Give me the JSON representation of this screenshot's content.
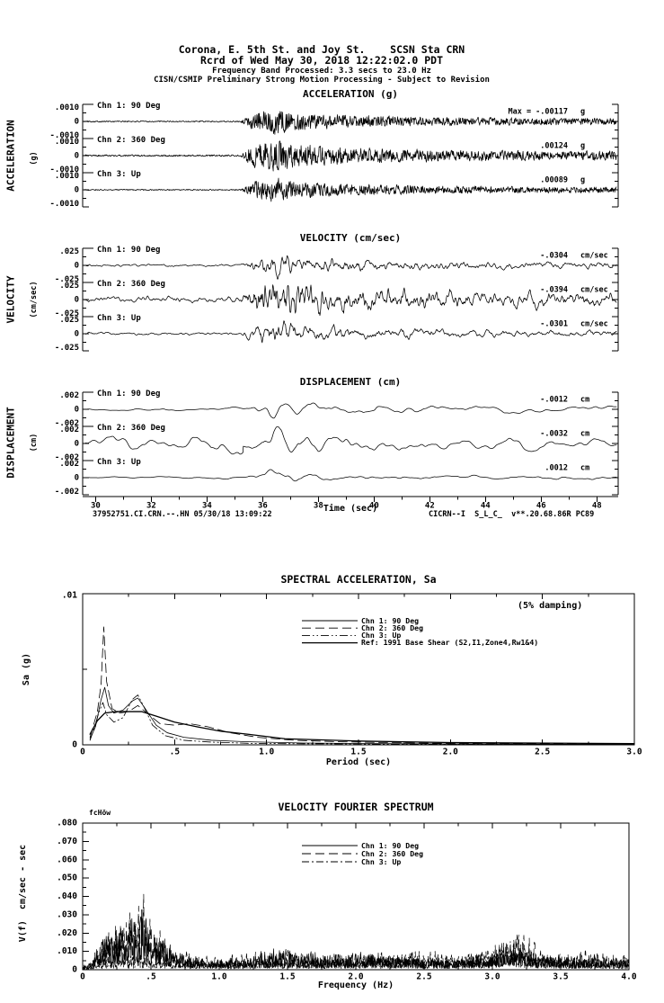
{
  "colors": {
    "background": "#ffffff",
    "ink": "#000000"
  },
  "header": {
    "line1": "Corona, E. 5th St. and Joy St.    SCSN Sta CRN",
    "line2": "Rcrd of Wed May 30, 2018 12:22:02.0 PDT",
    "line3": "Frequency Band Processed: 3.3 secs to 23.0 Hz",
    "line4": "CISN/CSMIP Preliminary Strong Motion Processing - Subject to Revision"
  },
  "time_series": {
    "sections": [
      {
        "id": "acceleration",
        "title": "ACCELERATION (g)",
        "side": "ACCELERATION",
        "side_unit": "(g)",
        "yticks": [
          ".0010",
          "0",
          "-.0010"
        ],
        "channels": [
          {
            "label": "Chn 1: 90 Deg",
            "max_text": "Max =  -.00117",
            "unit": "g"
          },
          {
            "label": "Chn 2: 360 Deg",
            "max_text": ".00124",
            "unit": "g"
          },
          {
            "label": "Chn 3: Up",
            "max_text": ".00089",
            "unit": "g"
          }
        ]
      },
      {
        "id": "velocity",
        "title": "VELOCITY (cm/sec)",
        "side": "VELOCITY",
        "side_unit": "(cm/sec)",
        "yticks": [
          ".025",
          "0",
          "-.025"
        ],
        "channels": [
          {
            "label": "Chn 1: 90 Deg",
            "max_text": "-.0304",
            "unit": "cm/sec"
          },
          {
            "label": "Chn 2: 360 Deg",
            "max_text": "-.0394",
            "unit": "cm/sec"
          },
          {
            "label": "Chn 3: Up",
            "max_text": "-.0301",
            "unit": "cm/sec"
          }
        ]
      },
      {
        "id": "displacement",
        "title": "DISPLACEMENT (cm)",
        "side": "DISPLACEMENT",
        "side_unit": "(cm)",
        "yticks": [
          ".002",
          "0",
          "-.002"
        ],
        "channels": [
          {
            "label": "Chn 1: 90 Deg",
            "max_text": "-.0012",
            "unit": "cm"
          },
          {
            "label": "Chn 2: 360 Deg",
            "max_text": "-.0032",
            "unit": "cm"
          },
          {
            "label": "Chn 3: Up",
            "max_text": ".0012",
            "unit": "cm"
          }
        ]
      }
    ],
    "time_axis": {
      "label": "Time (sec)",
      "tick_labels": [
        "30",
        "32",
        "34",
        "36",
        "38",
        "40",
        "42",
        "44",
        "46",
        "48"
      ],
      "tick_values": [
        30,
        32,
        34,
        36,
        38,
        40,
        42,
        44,
        46,
        48
      ],
      "t_start": 29.6,
      "t_end": 48.7
    },
    "footer_left": "37952751.CI.CRN.--.HN 05/30/18 13:09:22",
    "footer_right": "CICRN--I  S_L_C_  v**.20.68.86R PC89"
  },
  "sa_chart": {
    "title": "SPECTRAL ACCELERATION, Sa",
    "damping_note": "(5% damping)",
    "xlabel": "Period (sec)",
    "ylabel": "Sa (g)",
    "xtick_labels": [
      "0",
      ".5",
      "1.0",
      "1.5",
      "2.0",
      "2.5",
      "3.0"
    ],
    "xtick_values": [
      0,
      0.5,
      1,
      1.5,
      2,
      2.5,
      3
    ],
    "ytick_labels": [
      ".01",
      "0"
    ],
    "legend": [
      {
        "label": "Chn 1: 90 Deg",
        "style": "solid"
      },
      {
        "label": "Chn 2: 360 Deg",
        "style": "dash"
      },
      {
        "label": "Chn 3: Up",
        "style": "dashdotdot"
      },
      {
        "label": "Ref: 1991 Base Shear (S2,I1,Zone4,Rw1&4)",
        "style": "solid-thick"
      }
    ]
  },
  "fourier_chart": {
    "title": "VELOCITY FOURIER SPECTRUM",
    "corner_marker": "fcHöw",
    "xlabel": "Frequency (Hz)",
    "ylabel": "V(f)  cm/sec - sec",
    "xtick_labels": [
      "0",
      ".5",
      "1.0",
      "1.5",
      "2.0",
      "2.5",
      "3.0",
      "3.5",
      "4.0"
    ],
    "xtick_values": [
      0,
      0.5,
      1,
      1.5,
      2,
      2.5,
      3,
      3.5,
      4
    ],
    "ytick_labels": [
      ".080",
      ".070",
      ".060",
      ".050",
      ".040",
      ".030",
      ".020",
      ".010",
      "0"
    ],
    "ytick_values": [
      0.08,
      0.07,
      0.06,
      0.05,
      0.04,
      0.03,
      0.02,
      0.01,
      0
    ],
    "legend": [
      {
        "label": "Chn 1: 90 Deg",
        "style": "solid"
      },
      {
        "label": "Chn 2: 360 Deg",
        "style": "dash"
      },
      {
        "label": "Chn 3: Up",
        "style": "dashdot"
      }
    ]
  },
  "chart_data": [
    {
      "id": "acceleration",
      "type": "line",
      "title": "ACCELERATION (g)",
      "xlabel": "Time (sec)",
      "x_range": [
        29.6,
        48.7
      ],
      "ylim_per_channel": [
        -0.001,
        0.001
      ],
      "units": "g",
      "event_onset_sec": 35.3,
      "channels": [
        {
          "name": "Chn 1: 90 Deg",
          "peak": -0.00117
        },
        {
          "name": "Chn 2: 360 Deg",
          "peak": 0.00124
        },
        {
          "name": "Chn 3: Up",
          "peak": 0.00089
        }
      ],
      "synth": {
        "alpha": 0.25,
        "passes": 1,
        "amp": [
          0.8,
          0.95,
          0.72
        ],
        "pre": [
          1,
          1,
          1
        ],
        "seeds": [
          101,
          102,
          103
        ],
        "envelope": [
          [
            29.6,
            0.05
          ],
          [
            35.2,
            0.05
          ],
          [
            35.5,
            0.45
          ],
          [
            35.9,
            0.85
          ],
          [
            36.5,
            1.0
          ],
          [
            37.2,
            0.75
          ],
          [
            38.0,
            0.55
          ],
          [
            39.0,
            0.5
          ],
          [
            40.5,
            0.42
          ],
          [
            42.0,
            0.35
          ],
          [
            44.0,
            0.3
          ],
          [
            46.0,
            0.28
          ],
          [
            48.7,
            0.26
          ]
        ]
      }
    },
    {
      "id": "velocity",
      "type": "line",
      "title": "VELOCITY (cm/sec)",
      "xlabel": "Time (sec)",
      "x_range": [
        29.6,
        48.7
      ],
      "ylim_per_channel": [
        -0.025,
        0.025
      ],
      "units": "cm/sec",
      "event_onset_sec": 35.3,
      "channels": [
        {
          "name": "Chn 1: 90 Deg",
          "peak": -0.0304
        },
        {
          "name": "Chn 2: 360 Deg",
          "peak": -0.0394
        },
        {
          "name": "Chn 3: Up",
          "peak": -0.0301
        }
      ],
      "synth": {
        "alpha": 0.68,
        "passes": 2,
        "amp": [
          0.85,
          0.98,
          0.8
        ],
        "pre": [
          1,
          1,
          1
        ],
        "seeds": [
          201,
          202,
          203
        ],
        "envelope": [
          [
            29.6,
            0.1
          ],
          [
            35.2,
            0.1
          ],
          [
            35.5,
            0.5
          ],
          [
            36.0,
            0.9
          ],
          [
            36.6,
            1.0
          ],
          [
            37.5,
            0.7
          ],
          [
            38.5,
            0.55
          ],
          [
            40,
            0.45
          ],
          [
            42,
            0.38
          ],
          [
            44,
            0.3
          ],
          [
            46,
            0.28
          ],
          [
            48.7,
            0.25
          ]
        ]
      }
    },
    {
      "id": "displacement",
      "type": "line",
      "title": "DISPLACEMENT (cm)",
      "xlabel": "Time (sec)",
      "x_range": [
        29.6,
        48.7
      ],
      "ylim_per_channel": [
        -0.002,
        0.002
      ],
      "units": "cm",
      "event_onset_sec": 35.3,
      "channels": [
        {
          "name": "Chn 1: 90 Deg",
          "peak": -0.0012
        },
        {
          "name": "Chn 2: 360 Deg",
          "peak": -0.0032
        },
        {
          "name": "Chn 3: Up",
          "peak": 0.0012
        }
      ],
      "synth": {
        "alpha": 0.88,
        "passes": 3,
        "amp": [
          0.55,
          1.05,
          0.5
        ],
        "pre": [
          1,
          3.2,
          1
        ],
        "seeds": [
          301,
          302,
          303
        ],
        "envelope": [
          [
            29.6,
            0.12
          ],
          [
            35.3,
            0.15
          ],
          [
            35.8,
            0.7
          ],
          [
            36.4,
            1.0
          ],
          [
            37.5,
            0.75
          ],
          [
            38.5,
            0.6
          ],
          [
            40,
            0.5
          ],
          [
            42,
            0.45
          ],
          [
            44,
            0.35
          ],
          [
            46,
            0.3
          ],
          [
            48.7,
            0.3
          ]
        ]
      }
    },
    {
      "id": "sa",
      "type": "line",
      "title": "SPECTRAL ACCELERATION, Sa",
      "xlabel": "Period (sec)",
      "ylabel": "Sa (g)",
      "xlim": [
        0,
        3
      ],
      "ylim": [
        0,
        0.01
      ],
      "damping": "5%",
      "series": [
        {
          "name": "Chn 1: 90 Deg",
          "points": [
            [
              0.04,
              0.0004
            ],
            [
              0.07,
              0.0012
            ],
            [
              0.1,
              0.003
            ],
            [
              0.12,
              0.0038
            ],
            [
              0.14,
              0.0026
            ],
            [
              0.17,
              0.0021
            ],
            [
              0.22,
              0.0023
            ],
            [
              0.27,
              0.0029
            ],
            [
              0.3,
              0.0031
            ],
            [
              0.34,
              0.0024
            ],
            [
              0.4,
              0.0013
            ],
            [
              0.46,
              0.0008
            ],
            [
              0.55,
              0.0005
            ],
            [
              0.7,
              0.0003
            ],
            [
              0.9,
              0.0002
            ],
            [
              1.2,
              0.00012
            ],
            [
              1.6,
              8e-05
            ],
            [
              2.0,
              6e-05
            ],
            [
              2.5,
              5e-05
            ],
            [
              3.0,
              4e-05
            ]
          ]
        },
        {
          "name": "Chn 2: 360 Deg",
          "points": [
            [
              0.04,
              0.0005
            ],
            [
              0.08,
              0.0022
            ],
            [
              0.1,
              0.004
            ],
            [
              0.115,
              0.0078
            ],
            [
              0.13,
              0.0042
            ],
            [
              0.16,
              0.0024
            ],
            [
              0.2,
              0.0021
            ],
            [
              0.25,
              0.0022
            ],
            [
              0.3,
              0.0026
            ],
            [
              0.35,
              0.0021
            ],
            [
              0.42,
              0.0014
            ],
            [
              0.5,
              0.0013
            ],
            [
              0.58,
              0.0014
            ],
            [
              0.68,
              0.0012
            ],
            [
              0.8,
              0.0008
            ],
            [
              0.95,
              0.0005
            ],
            [
              1.15,
              0.0003
            ],
            [
              1.4,
              0.0002
            ],
            [
              1.8,
              0.00012
            ],
            [
              2.3,
              8e-05
            ],
            [
              3.0,
              6e-05
            ]
          ]
        },
        {
          "name": "Chn 3: Up",
          "points": [
            [
              0.04,
              0.0003
            ],
            [
              0.06,
              0.001
            ],
            [
              0.09,
              0.0022
            ],
            [
              0.11,
              0.0028
            ],
            [
              0.13,
              0.002
            ],
            [
              0.17,
              0.0015
            ],
            [
              0.22,
              0.0018
            ],
            [
              0.27,
              0.003
            ],
            [
              0.3,
              0.0033
            ],
            [
              0.33,
              0.0026
            ],
            [
              0.38,
              0.0013
            ],
            [
              0.45,
              0.0006
            ],
            [
              0.55,
              0.0003
            ],
            [
              0.7,
              0.00018
            ],
            [
              0.9,
              0.0001
            ],
            [
              1.2,
              7e-05
            ],
            [
              1.7,
              5e-05
            ],
            [
              2.4,
              4e-05
            ],
            [
              3.0,
              3e-05
            ]
          ]
        },
        {
          "name": "Ref: 1991 Base Shear (S2,I1,Zone4,Rw1&4)",
          "points": [
            [
              0.04,
              0.0007
            ],
            [
              0.08,
              0.0016
            ],
            [
              0.12,
              0.0021
            ],
            [
              0.18,
              0.0022
            ],
            [
              0.25,
              0.0022
            ],
            [
              0.32,
              0.0022
            ],
            [
              0.4,
              0.0019
            ],
            [
              0.5,
              0.0015
            ],
            [
              0.62,
              0.0012
            ],
            [
              0.75,
              0.0009
            ],
            [
              0.9,
              0.0007
            ],
            [
              1.1,
              0.0004
            ],
            [
              1.5,
              0.00025
            ],
            [
              2.0,
              0.00015
            ],
            [
              3.0,
              8e-05
            ]
          ]
        }
      ]
    },
    {
      "id": "fourier",
      "type": "line",
      "title": "VELOCITY FOURIER SPECTRUM",
      "xlabel": "Frequency (Hz)",
      "ylabel": "V(f) cm/sec - sec",
      "xlim": [
        0,
        4
      ],
      "ylim": [
        0,
        0.08
      ],
      "series": [
        {
          "name": "Chn 1: 90 Deg",
          "envelope": [
            [
              0.03,
              0.003
            ],
            [
              0.15,
              0.02
            ],
            [
              0.3,
              0.03
            ],
            [
              0.42,
              0.045
            ],
            [
              0.5,
              0.03
            ],
            [
              0.65,
              0.015
            ],
            [
              0.9,
              0.006
            ],
            [
              1.2,
              0.008
            ],
            [
              1.4,
              0.014
            ],
            [
              1.6,
              0.012
            ],
            [
              1.9,
              0.01
            ],
            [
              2.1,
              0.012
            ],
            [
              2.4,
              0.009
            ],
            [
              2.7,
              0.007
            ],
            [
              3.0,
              0.012
            ],
            [
              3.2,
              0.014
            ],
            [
              3.5,
              0.007
            ],
            [
              3.8,
              0.008
            ],
            [
              4.0,
              0.006
            ]
          ]
        },
        {
          "name": "Chn 2: 360 Deg",
          "envelope": [
            [
              0.03,
              0.003
            ],
            [
              0.15,
              0.025
            ],
            [
              0.3,
              0.035
            ],
            [
              0.42,
              0.058
            ],
            [
              0.55,
              0.025
            ],
            [
              0.7,
              0.012
            ],
            [
              1.0,
              0.007
            ],
            [
              1.3,
              0.012
            ],
            [
              1.6,
              0.01
            ],
            [
              2.0,
              0.012
            ],
            [
              2.3,
              0.01
            ],
            [
              2.6,
              0.007
            ],
            [
              3.0,
              0.01
            ],
            [
              3.15,
              0.028
            ],
            [
              3.4,
              0.01
            ],
            [
              3.7,
              0.012
            ],
            [
              4.0,
              0.008
            ]
          ]
        },
        {
          "name": "Chn 3: Up",
          "envelope": [
            [
              0.03,
              0.002
            ],
            [
              0.2,
              0.008
            ],
            [
              0.4,
              0.01
            ],
            [
              0.6,
              0.008
            ],
            [
              0.9,
              0.005
            ],
            [
              1.2,
              0.006
            ],
            [
              1.5,
              0.008
            ],
            [
              1.9,
              0.006
            ],
            [
              2.2,
              0.008
            ],
            [
              2.5,
              0.012
            ],
            [
              2.8,
              0.01
            ],
            [
              3.1,
              0.02
            ],
            [
              3.3,
              0.012
            ],
            [
              3.6,
              0.008
            ],
            [
              4.0,
              0.006
            ]
          ]
        }
      ],
      "synth": {
        "seeds": [
          401,
          402,
          403
        ]
      }
    }
  ]
}
